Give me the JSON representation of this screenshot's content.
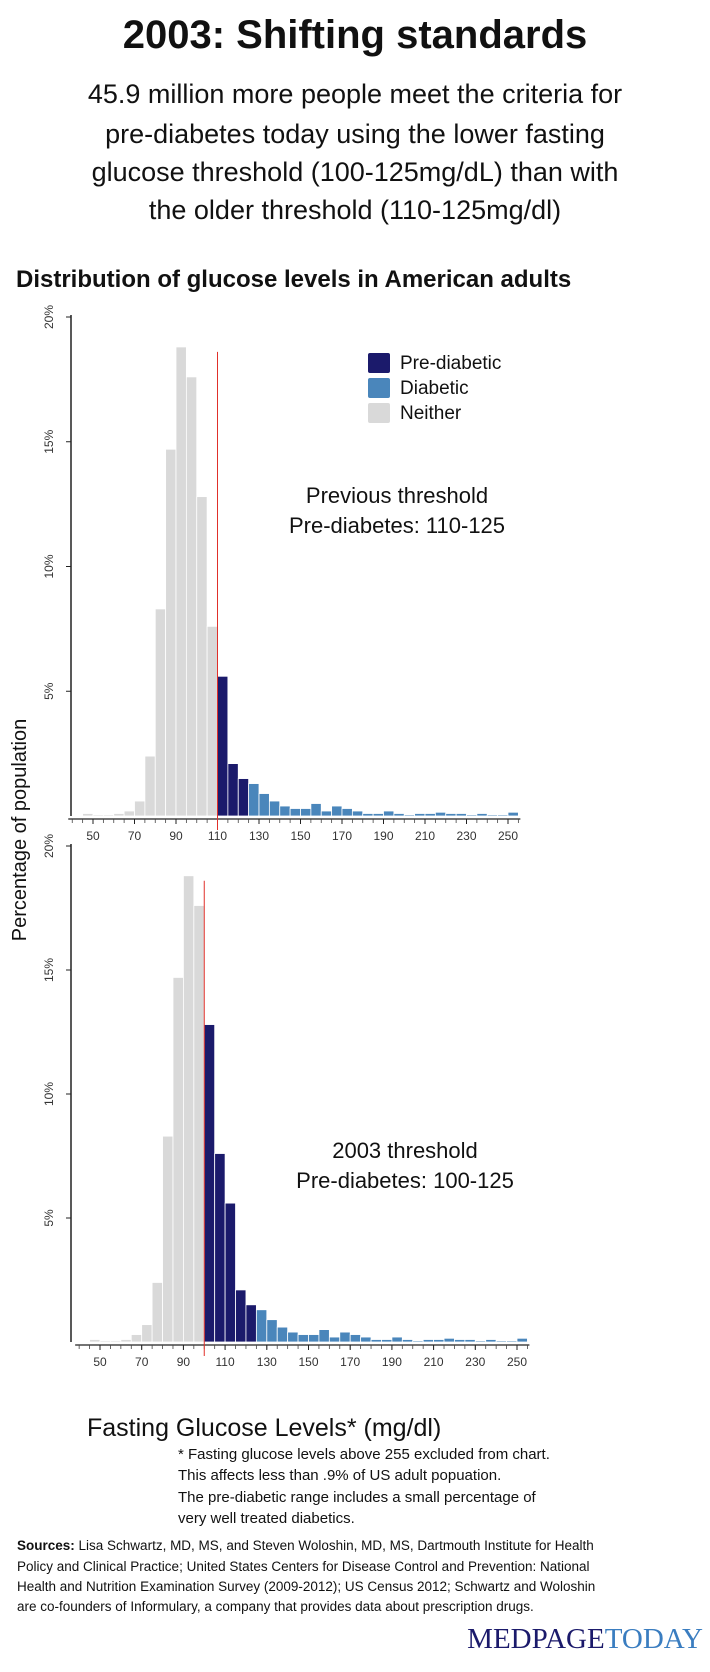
{
  "header": {
    "title": "2003: Shifting standards",
    "subtitle": [
      "45.9 million more people meet the criteria for",
      "pre-diabetes today using the lower fasting",
      "glucose threshold (100-125mg/dL) than with",
      "the older threshold (110-125mg/dl)"
    ],
    "chart_heading": "Distribution of glucose levels in American adults"
  },
  "y_axis_label": "Percentage of population",
  "x_axis_label": "Fasting Glucose Levels* (mg/dl)",
  "legend": [
    {
      "name": "Pre-diabetic",
      "color": "#1b1a6b"
    },
    {
      "name": "Diabetic",
      "color": "#4a86bb"
    },
    {
      "name": "Neither",
      "color": "#d9d9d9"
    }
  ],
  "chart_data": [
    {
      "type": "histogram",
      "annotation": [
        "Previous threshold",
        "Pre-diabetes: 110-125"
      ],
      "bins": [
        45,
        50,
        55,
        60,
        65,
        70,
        75,
        80,
        85,
        90,
        95,
        100,
        105,
        110,
        115,
        120,
        125,
        130,
        135,
        140,
        145,
        150,
        155,
        160,
        165,
        170,
        175,
        180,
        185,
        190,
        195,
        200,
        205,
        210,
        215,
        220,
        225,
        230,
        235,
        240,
        245,
        250,
        255
      ],
      "values": [
        0.1,
        0.05,
        0.05,
        0.1,
        0.2,
        0.6,
        2.4,
        8.3,
        14.7,
        18.8,
        17.6,
        12.8,
        7.6,
        5.6,
        2.1,
        1.5,
        1.3,
        0.9,
        0.6,
        0.4,
        0.3,
        0.3,
        0.5,
        0.2,
        0.4,
        0.3,
        0.2,
        0.1,
        0.1,
        0.2,
        0.1,
        0.05,
        0.1,
        0.1,
        0.15,
        0.1,
        0.1,
        0.05,
        0.1,
        0.05,
        0.05,
        0.15
      ],
      "pre_diabetic_range": [
        110,
        125
      ],
      "diabetic_range": [
        125,
        255
      ],
      "threshold": 110,
      "xlim": [
        40,
        255
      ],
      "xticks": [
        50,
        70,
        90,
        110,
        130,
        150,
        170,
        190,
        210,
        230,
        250
      ],
      "ylim": [
        0,
        20
      ],
      "yticks": [
        {
          "value": 5,
          "label": "5%"
        },
        {
          "value": 10,
          "label": "10%"
        },
        {
          "value": 15,
          "label": "15%"
        },
        {
          "value": 20,
          "label": "20%"
        }
      ]
    },
    {
      "type": "histogram",
      "annotation": [
        "2003 threshold",
        "Pre-diabetes: 100-125"
      ],
      "bins": [
        45,
        50,
        55,
        60,
        65,
        70,
        75,
        80,
        85,
        90,
        95,
        100,
        105,
        110,
        115,
        120,
        125,
        130,
        135,
        140,
        145,
        150,
        155,
        160,
        165,
        170,
        175,
        180,
        185,
        190,
        195,
        200,
        205,
        210,
        215,
        220,
        225,
        230,
        235,
        240,
        245,
        250,
        255
      ],
      "values": [
        0.1,
        0.05,
        0.05,
        0.1,
        0.3,
        0.7,
        2.4,
        8.3,
        14.7,
        18.8,
        17.6,
        12.8,
        7.6,
        5.6,
        2.1,
        1.5,
        1.3,
        0.9,
        0.6,
        0.4,
        0.3,
        0.3,
        0.5,
        0.2,
        0.4,
        0.3,
        0.2,
        0.1,
        0.1,
        0.2,
        0.1,
        0.05,
        0.1,
        0.1,
        0.15,
        0.1,
        0.1,
        0.05,
        0.1,
        0.05,
        0.05,
        0.15
      ],
      "pre_diabetic_range": [
        100,
        125
      ],
      "diabetic_range": [
        125,
        255
      ],
      "threshold": 100,
      "xlim": [
        40,
        255
      ],
      "xticks": [
        50,
        70,
        90,
        110,
        130,
        150,
        170,
        190,
        210,
        230,
        250
      ],
      "ylim": [
        0,
        20
      ],
      "yticks": [
        {
          "value": 5,
          "label": "5%"
        },
        {
          "value": 10,
          "label": "10%"
        },
        {
          "value": 15,
          "label": "15%"
        },
        {
          "value": 20,
          "label": "20%"
        }
      ]
    }
  ],
  "footnote": [
    "* Fasting glucose  levels above 255 excluded from chart.",
    "This affects less than .9% of US adult popuation.",
    "The pre-diabetic range includes a small percentage of",
    "very well treated diabetics."
  ],
  "sources": {
    "label": "Sources:",
    "lines": [
      " Lisa Schwartz, MD, MS, and Steven Woloshin,  MD, MS, Dartmouth Institute for Health",
      "Policy and Clinical Practice; United States Centers for Disease Control and Prevention: National",
      "Health and Nutrition Examination Survey (2009-2012); US Census 2012; Schwartz and Woloshin",
      "are co-founders of Informulary, a company that provides data about prescription drugs."
    ]
  },
  "logo": [
    "MEDPAGE",
    "TODAY"
  ]
}
